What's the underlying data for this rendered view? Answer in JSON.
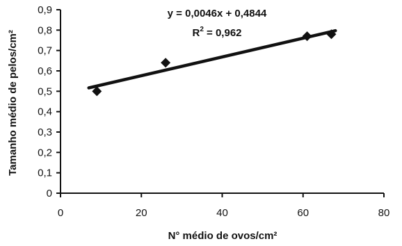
{
  "chart_data": {
    "type": "scatter",
    "xlabel": "N° médio de ovos/cm²",
    "ylabel": "Tamanho médio de pelos/cm²",
    "xlim": [
      0,
      80
    ],
    "ylim": [
      0,
      0.9
    ],
    "x_ticks": [
      0,
      20,
      40,
      60,
      80
    ],
    "y_ticks": [
      0,
      0.1,
      0.2,
      0.3,
      0.4,
      0.5,
      0.6,
      0.7,
      0.8,
      0.9
    ],
    "x_tick_labels": [
      "0",
      "20",
      "40",
      "60",
      "80"
    ],
    "y_tick_labels": [
      "0",
      "0,1",
      "0,2",
      "0,3",
      "0,4",
      "0,5",
      "0,6",
      "0,7",
      "0,8",
      "0,9"
    ],
    "grid": false,
    "series": [
      {
        "x": [
          9,
          26,
          61,
          67
        ],
        "y": [
          0.5,
          0.64,
          0.77,
          0.78
        ],
        "marker": "diamond",
        "color": "#111111"
      }
    ],
    "trendline": {
      "slope": 0.0046,
      "intercept": 0.4844,
      "x_range": [
        7,
        68
      ],
      "color": "#111111"
    },
    "annotations": {
      "equation": "y = 0,0046x + 0,4844",
      "r2_prefix": "R",
      "r2_sup": "2",
      "r2_value": " = 0,962"
    }
  }
}
